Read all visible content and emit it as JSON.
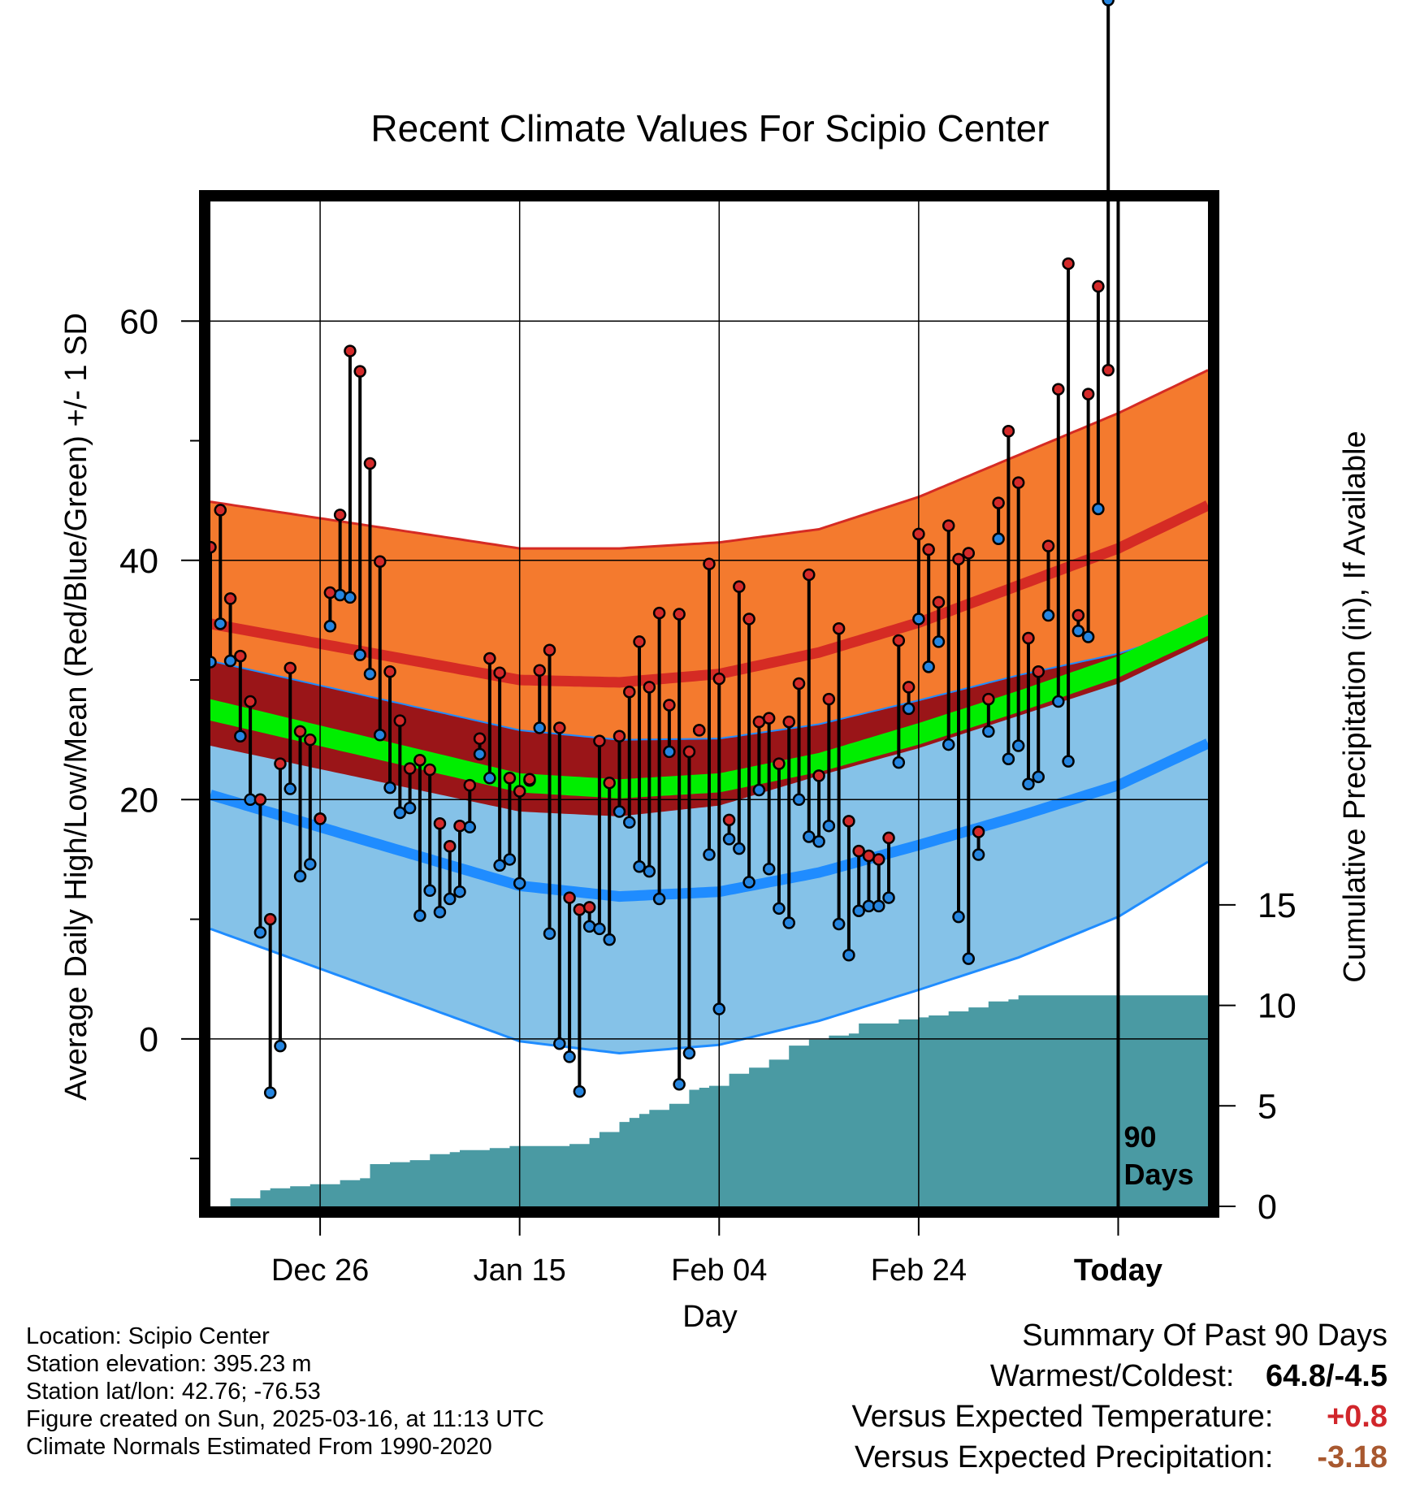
{
  "colors": {
    "high_mean": "#d52b24",
    "high_band": "#f47a2e",
    "low_mean": "#1f8cff",
    "low_band": "#85c2e8",
    "overlap_band": "#9a1518",
    "mean_line": "#00ee00",
    "precip_fill": "#4a9aa3",
    "high_dot": "#d42a2a",
    "low_dot": "#2585e0",
    "temp_anomaly": "#d1262b",
    "precip_anomaly": "#a8582f"
  },
  "chart_data": {
    "type": "line",
    "title": "Recent Climate Values For Scipio Center",
    "xlabel": "Day",
    "ylabel": "Average Daily High/Low/Mean (Red/Blue/Green) +/- 1 SD",
    "y2label": "Cumulative Precipitation (in), If Available",
    "ylim": [
      -14,
      70
    ],
    "y2lim": [
      0,
      50
    ],
    "y_ticks": [
      "0",
      "20",
      "40",
      "60"
    ],
    "y2_ticks": [
      "0",
      "5",
      "10",
      "15"
    ],
    "x_ticks": [
      "Dec 26",
      "Jan 15",
      "Feb 04",
      "Feb 24",
      "Today"
    ],
    "x_tick_days": [
      -80,
      -60,
      -40,
      -20,
      0
    ],
    "xlim": [
      -91,
      9
    ],
    "today_label": "90\nDays",
    "grid": true,
    "normals": {
      "days": [
        -91,
        -60,
        -50,
        -40,
        -30,
        -20,
        -10,
        0,
        9
      ],
      "high_mean": [
        34.7,
        30.0,
        29.8,
        30.5,
        32.3,
        34.8,
        37.9,
        41.0,
        44.6
      ],
      "high_sd": [
        10.2,
        11.0,
        11.2,
        11.0,
        10.3,
        10.5,
        10.9,
        11.3,
        11.3
      ],
      "low_mean": [
        20.4,
        12.8,
        11.9,
        12.3,
        13.9,
        16.2,
        18.6,
        21.2,
        24.7
      ],
      "low_sd": [
        11.2,
        13.0,
        13.1,
        12.8,
        12.4,
        12.1,
        11.8,
        11.0,
        9.9
      ],
      "mean": [
        27.5,
        21.4,
        20.9,
        21.4,
        23.1,
        25.5,
        28.2,
        31.1,
        34.6
      ],
      "mean_sd": [
        0.9,
        0.8,
        0.8,
        0.8,
        0.8,
        0.9,
        0.9,
        0.9,
        0.9
      ]
    },
    "series": [
      {
        "name": "High",
        "values": [
          41.1,
          44.2,
          36.8,
          32.0,
          28.2,
          20.0,
          10.0,
          23.0,
          31.0,
          25.7,
          25.0,
          18.4,
          37.3,
          43.8,
          57.5,
          55.8,
          48.1,
          39.9,
          30.7,
          26.6,
          22.6,
          23.3,
          22.5,
          18.0,
          16.1,
          17.8,
          21.2,
          25.1,
          31.8,
          30.6,
          21.8,
          20.7,
          21.7,
          30.8,
          32.5,
          26.0,
          11.8,
          10.8,
          11.0,
          24.9,
          21.4,
          25.3,
          29.0,
          33.2,
          29.4,
          35.6,
          27.9,
          35.5,
          24.0,
          25.8,
          39.7,
          30.1,
          18.3,
          37.8,
          35.1,
          26.5,
          26.8,
          23.0,
          26.5,
          29.7,
          38.8,
          22.0,
          28.4,
          34.3,
          18.2,
          15.7,
          15.3,
          15.0,
          16.8,
          33.3,
          29.4,
          42.2,
          40.9,
          36.5,
          42.9,
          40.1,
          40.6,
          17.3,
          28.4,
          44.8,
          50.8,
          46.5,
          33.5,
          30.7,
          41.2,
          54.3,
          64.8,
          35.4,
          53.9,
          62.9,
          55.9
        ]
      },
      {
        "name": "Low",
        "values": [
          31.5,
          34.7,
          31.6,
          25.3,
          20.0,
          8.9,
          -4.5,
          -0.6,
          20.9,
          13.6,
          14.6,
          18.4,
          34.5,
          37.1,
          36.9,
          32.1,
          30.5,
          25.4,
          21.0,
          18.9,
          19.3,
          10.3,
          12.4,
          10.6,
          11.7,
          12.3,
          17.7,
          23.8,
          21.8,
          14.5,
          15.0,
          13.0,
          21.6,
          26.0,
          8.8,
          -0.4,
          -1.5,
          -4.4,
          9.4,
          9.2,
          8.3,
          19.0,
          18.1,
          14.4,
          14.0,
          11.7,
          24.0,
          -3.8,
          -1.2,
          25.8,
          15.4,
          2.5,
          16.7,
          15.9,
          13.1,
          20.8,
          14.2,
          10.9,
          9.7,
          20.0,
          16.9,
          16.5,
          17.8,
          9.6,
          7.0,
          10.7,
          11.1,
          11.1,
          11.8,
          23.1,
          27.6,
          35.1,
          31.1,
          33.2,
          24.6,
          10.2,
          6.7,
          15.4,
          25.7,
          41.8,
          23.4,
          24.5,
          21.3,
          21.9,
          35.4,
          28.2,
          23.2,
          34.1,
          33.6,
          44.3
        ]
      },
      {
        "name": "Precipitation",
        "x": [
          -91,
          -89,
          -86,
          -85,
          -83,
          -81,
          -78,
          -76,
          -75,
          -73,
          -71,
          -69,
          -67,
          -66,
          -63,
          -61,
          -55,
          -53,
          -52,
          -50,
          -49,
          -48,
          -47,
          -45,
          -43,
          -42,
          -41,
          -39,
          -37,
          -35,
          -33,
          -31,
          -29,
          -27,
          -26,
          -22,
          -20,
          -19,
          -17,
          -15,
          -13,
          -11,
          -10,
          9
        ],
        "values": [
          0.0,
          0.4,
          0.8,
          0.9,
          1.0,
          1.1,
          1.3,
          1.4,
          2.1,
          2.2,
          2.3,
          2.6,
          2.7,
          2.8,
          2.9,
          3.0,
          3.1,
          3.4,
          3.7,
          4.2,
          4.4,
          4.6,
          4.8,
          5.1,
          5.8,
          5.9,
          6.0,
          6.6,
          6.9,
          7.3,
          8.0,
          8.3,
          8.5,
          8.6,
          9.1,
          9.3,
          9.4,
          9.5,
          9.7,
          9.9,
          10.2,
          10.3,
          10.5,
          10.5
        ]
      }
    ]
  },
  "info": {
    "location": "Location: Scipio Center",
    "elevation": "Station elevation: 395.23 m",
    "latlon": "Station lat/lon: 42.76; -76.53",
    "created": "Figure created on Sun, 2025-03-16, at 11:13 UTC",
    "normals": "Climate Normals Estimated From 1990-2020"
  },
  "summary": {
    "title": "Summary Of Past 90 Days",
    "warm_cold_label": "Warmest/Coldest:",
    "warm_cold_value": "64.8/-4.5",
    "temp_label": "Versus Expected Temperature:",
    "temp_value": "+0.8",
    "precip_label": "Versus Expected Precipitation:",
    "precip_value": "-3.18"
  }
}
